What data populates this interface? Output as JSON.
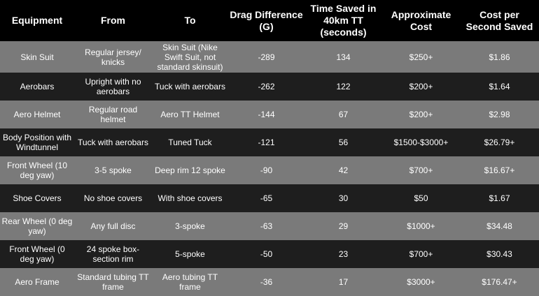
{
  "table": {
    "headers": [
      "Equipment",
      "From",
      "To",
      "Drag Difference (G)",
      "Time Saved in 40km TT (seconds)",
      "Approximate Cost",
      "Cost per Second Saved"
    ],
    "rows": [
      [
        "Skin Suit",
        "Regular jersey/ knicks",
        "Skin Suit (Nike Swift Suit, not standard skinsuit)",
        "-289",
        "134",
        "$250+",
        "$1.86"
      ],
      [
        "Aerobars",
        "Upright with no aerobars",
        "Tuck with aerobars",
        "-262",
        "122",
        "$200+",
        "$1.64"
      ],
      [
        "Aero Helmet",
        "Regular road helmet",
        "Aero TT Helmet",
        "-144",
        "67",
        "$200+",
        "$2.98"
      ],
      [
        "Body Position with Windtunnel",
        "Tuck with aerobars",
        "Tuned Tuck",
        "-121",
        "56",
        "$1500-$3000+",
        "$26.79+"
      ],
      [
        "Front Wheel (10 deg yaw)",
        "3-5 spoke",
        "Deep rim 12 spoke",
        "-90",
        "42",
        "$700+",
        "$16.67+"
      ],
      [
        "Shoe Covers",
        "No shoe covers",
        "With shoe covers",
        "-65",
        "30",
        "$50",
        "$1.67"
      ],
      [
        "Rear Wheel (0 deg yaw)",
        "Any full disc",
        "3-spoke",
        "-63",
        "29",
        "$1000+",
        "$34.48"
      ],
      [
        "Front Wheel (0 deg yaw)",
        "24 spoke box-section rim",
        "5-spoke",
        "-50",
        "23",
        "$700+",
        "$30.43"
      ],
      [
        "Aero Frame",
        "Standard tubing TT frame",
        "Aero tubing TT frame",
        "-36",
        "17",
        "$3000+",
        "$176.47+"
      ]
    ]
  }
}
